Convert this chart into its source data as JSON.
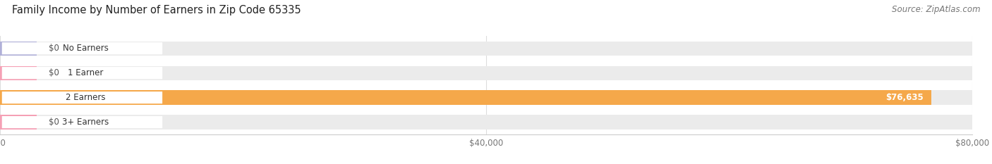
{
  "title": "Family Income by Number of Earners in Zip Code 65335",
  "source": "Source: ZipAtlas.com",
  "categories": [
    "No Earners",
    "1 Earner",
    "2 Earners",
    "3+ Earners"
  ],
  "values": [
    0,
    0,
    76635,
    0
  ],
  "bar_colors": [
    "#b0b0d8",
    "#f5a0b5",
    "#f5a84a",
    "#f5a0b5"
  ],
  "bar_bg_color": "#ebebeb",
  "xlim_max": 80000,
  "xticks": [
    0,
    40000,
    80000
  ],
  "xticklabels": [
    "$0",
    "$40,000",
    "$80,000"
  ],
  "value_labels": [
    "$0",
    "$0",
    "$76,635",
    "$0"
  ],
  "figsize": [
    14.06,
    2.33
  ],
  "dpi": 100,
  "title_fontsize": 10.5,
  "source_fontsize": 8.5,
  "bar_height": 0.58,
  "background_color": "#ffffff",
  "label_box_color": "#ffffff",
  "label_text_color": "#333333",
  "value_text_color_inside": "#ffffff",
  "value_text_color_outside": "#555555",
  "grid_color": "#dddddd",
  "spine_color": "#cccccc",
  "tick_label_color": "#777777"
}
